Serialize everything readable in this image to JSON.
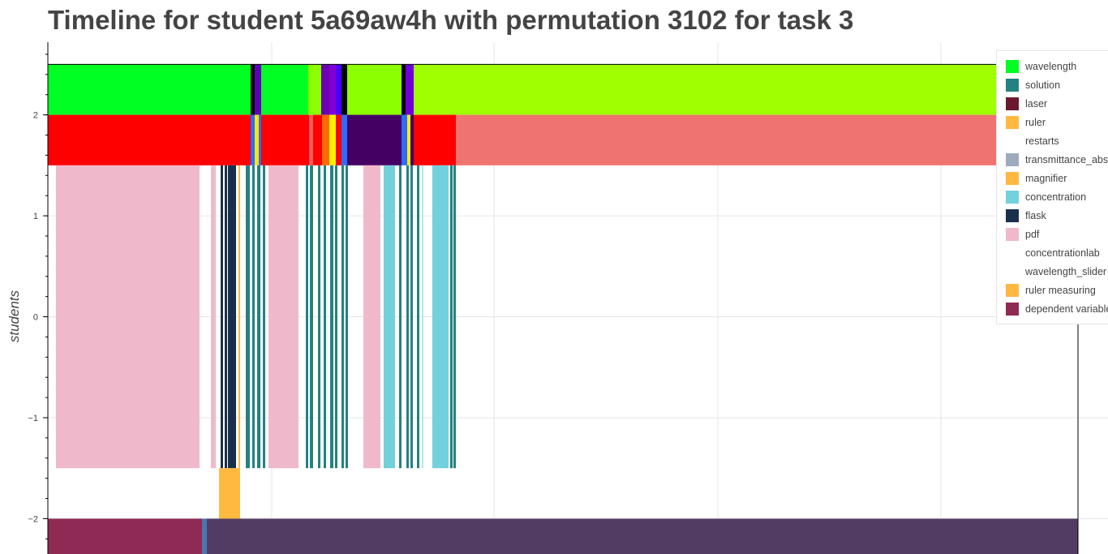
{
  "chart_data": {
    "type": "timeline",
    "title": "Timeline for student 5a69aw4h with permutation 3102 for task 3",
    "ylabel": "students",
    "xlabel": "",
    "ylim": [
      -2.35,
      2.72
    ],
    "y_ticks": [
      2,
      1,
      0,
      -1,
      -2
    ],
    "y_tick_labels": [
      "2",
      "1",
      "0",
      "−1",
      "−2"
    ],
    "grid": true,
    "legend_position": "top-right",
    "legend": [
      {
        "name": "wavelength",
        "color": "#00ff22"
      },
      {
        "name": "solution",
        "color": "#238281"
      },
      {
        "name": "laser",
        "color": "#6b1a2e"
      },
      {
        "name": "ruler",
        "color": "#ffb941"
      },
      {
        "name": "restarts",
        "color": "#ffffff"
      },
      {
        "name": "transmittance_absorbance",
        "color": "#9eabbe"
      },
      {
        "name": "magnifier",
        "color": "#ffb941"
      },
      {
        "name": "concentration",
        "color": "#72d1dc"
      },
      {
        "name": "flask",
        "color": "#19304a"
      },
      {
        "name": "pdf",
        "color": "#f0b9cb"
      },
      {
        "name": "concentrationlab",
        "color": "#ffffff"
      },
      {
        "name": "wavelength_slider",
        "color": "#ffffff"
      },
      {
        "name": "ruler measuring",
        "color": "#ffb941"
      },
      {
        "name": "dependent variable",
        "color": "#8f2a54"
      }
    ],
    "rows": [
      {
        "row": "top",
        "y0": 2.0,
        "y1": 2.5,
        "segments": [
          {
            "x0": 0,
            "x1": 250,
            "color": "#00ff22"
          },
          {
            "x0": 250,
            "x1": 255,
            "color": "#000000"
          },
          {
            "x0": 255,
            "x1": 263,
            "color": "#5b00b8"
          },
          {
            "x0": 263,
            "x1": 321,
            "color": "#00ff22"
          },
          {
            "x0": 321,
            "x1": 337,
            "color": "#8cff00"
          },
          {
            "x0": 337,
            "x1": 347,
            "color": "#6b00b0"
          },
          {
            "x0": 347,
            "x1": 355,
            "color": "#8200d4"
          },
          {
            "x0": 355,
            "x1": 362,
            "color": "#4a00ff"
          },
          {
            "x0": 362,
            "x1": 369,
            "color": "#000000"
          },
          {
            "x0": 369,
            "x1": 436,
            "color": "#8cff00"
          },
          {
            "x0": 436,
            "x1": 441,
            "color": "#000000"
          },
          {
            "x0": 441,
            "x1": 451,
            "color": "#6f00dd"
          },
          {
            "x0": 451,
            "x1": 1270,
            "color": "#a0ff00"
          }
        ]
      },
      {
        "row": "second",
        "y0": 1.5,
        "y1": 2.0,
        "segments": [
          {
            "x0": 0,
            "x1": 250,
            "color": "#ff0000"
          },
          {
            "x0": 250,
            "x1": 255,
            "color": "#2d6cff"
          },
          {
            "x0": 255,
            "x1": 260,
            "color": "#ffe600"
          },
          {
            "x0": 260,
            "x1": 263,
            "color": "#2d6cff"
          },
          {
            "x0": 263,
            "x1": 322,
            "color": "#ff0000"
          },
          {
            "x0": 322,
            "x1": 327,
            "color": "#ff5a5a"
          },
          {
            "x0": 327,
            "x1": 338,
            "color": "#ff0000"
          },
          {
            "x0": 338,
            "x1": 347,
            "color": "#ff6a00"
          },
          {
            "x0": 347,
            "x1": 355,
            "color": "#ffee00"
          },
          {
            "x0": 355,
            "x1": 362,
            "color": "#ff0000"
          },
          {
            "x0": 362,
            "x1": 369,
            "color": "#2d6cff"
          },
          {
            "x0": 369,
            "x1": 436,
            "color": "#440063"
          },
          {
            "x0": 436,
            "x1": 443,
            "color": "#2d6cff"
          },
          {
            "x0": 443,
            "x1": 447,
            "color": "#ffee00"
          },
          {
            "x0": 447,
            "x1": 451,
            "color": "#440063"
          },
          {
            "x0": 451,
            "x1": 503,
            "color": "#ff0000"
          },
          {
            "x0": 503,
            "x1": 1270,
            "color": "#ef736f"
          }
        ]
      },
      {
        "row": "middle",
        "y0": -1.5,
        "y1": 1.5,
        "segments": [
          {
            "x0": 10,
            "x1": 187,
            "color": "#f0b9cb"
          },
          {
            "x0": 201,
            "x1": 207,
            "color": "#f0b9cb"
          },
          {
            "x0": 213,
            "x1": 216,
            "color": "#19304a"
          },
          {
            "x0": 218,
            "x1": 221,
            "color": "#19304a"
          },
          {
            "x0": 222,
            "x1": 232,
            "color": "#19304a"
          },
          {
            "x0": 235,
            "x1": 237,
            "color": "#ffb941"
          },
          {
            "x0": 244,
            "x1": 249,
            "color": "#238281"
          },
          {
            "x0": 252,
            "x1": 255,
            "color": "#238281"
          },
          {
            "x0": 258,
            "x1": 262,
            "color": "#238281"
          },
          {
            "x0": 265,
            "x1": 268,
            "color": "#238281"
          },
          {
            "x0": 272,
            "x1": 309,
            "color": "#f0b9cb"
          },
          {
            "x0": 318,
            "x1": 321,
            "color": "#238281"
          },
          {
            "x0": 323,
            "x1": 327,
            "color": "#238281"
          },
          {
            "x0": 333,
            "x1": 336,
            "color": "#238281"
          },
          {
            "x0": 340,
            "x1": 343,
            "color": "#238281"
          },
          {
            "x0": 348,
            "x1": 352,
            "color": "#238281"
          },
          {
            "x0": 354,
            "x1": 357,
            "color": "#238281"
          },
          {
            "x0": 362,
            "x1": 365,
            "color": "#238281"
          },
          {
            "x0": 367,
            "x1": 370,
            "color": "#238281"
          },
          {
            "x0": 389,
            "x1": 410,
            "color": "#f0b9cb"
          },
          {
            "x0": 414,
            "x1": 428,
            "color": "#72d1dc"
          },
          {
            "x0": 433,
            "x1": 436,
            "color": "#238281"
          },
          {
            "x0": 442,
            "x1": 445,
            "color": "#238281"
          },
          {
            "x0": 447,
            "x1": 450,
            "color": "#238281"
          },
          {
            "x0": 455,
            "x1": 458,
            "color": "#238281"
          },
          {
            "x0": 461,
            "x1": 463,
            "color": "#b8e6ea"
          },
          {
            "x0": 474,
            "x1": 494,
            "color": "#72d1dc"
          },
          {
            "x0": 496,
            "x1": 499,
            "color": "#238281"
          },
          {
            "x0": 500,
            "x1": 503,
            "color": "#238281"
          }
        ]
      },
      {
        "row": "ruler",
        "y0": -2.0,
        "y1": -1.5,
        "segments": [
          {
            "x0": 211,
            "x1": 237,
            "color": "#ffb941"
          }
        ]
      },
      {
        "row": "bottom",
        "y0": -2.4,
        "y1": -2.0,
        "segments": [
          {
            "x0": 0,
            "x1": 190,
            "color": "#8f2a54"
          },
          {
            "x0": 190,
            "x1": 196,
            "color": "#4a77b0"
          },
          {
            "x0": 196,
            "x1": 1270,
            "color": "#523c64"
          }
        ]
      }
    ]
  }
}
